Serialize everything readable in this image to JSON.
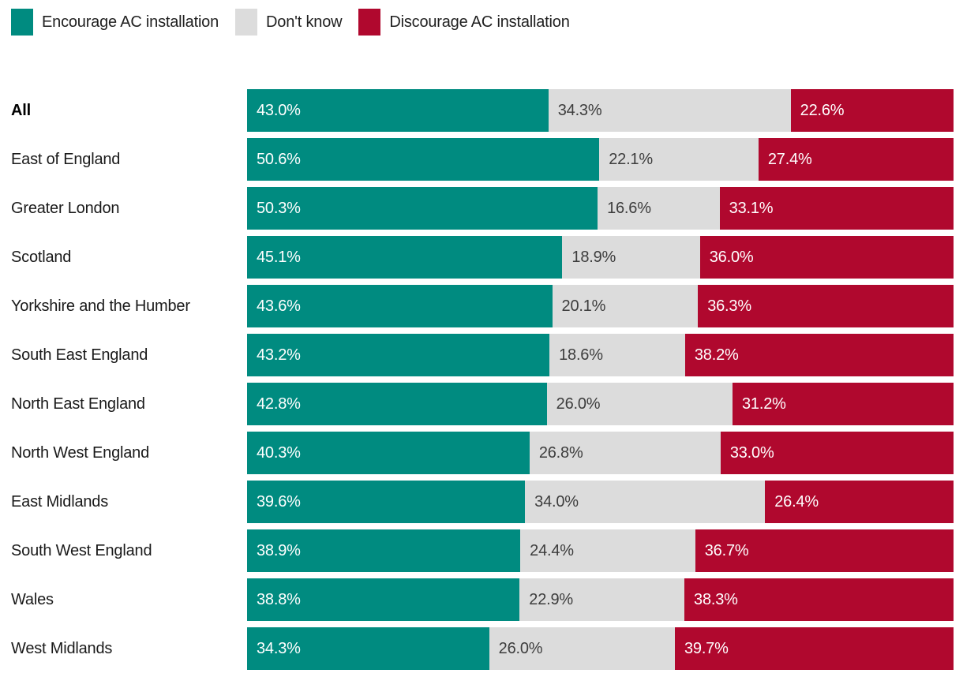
{
  "legend": {
    "items": [
      {
        "label": "Encourage AC installation",
        "color": "#008B80"
      },
      {
        "label": "Don't know",
        "color": "#DCDCDC"
      },
      {
        "label": "Discourage AC installation",
        "color": "#B0082E"
      }
    ]
  },
  "colors": {
    "encourage": "#008B80",
    "dont_know": "#DCDCDC",
    "discourage": "#B0082E",
    "value_text_on_dark": "#FFFFFF",
    "value_text_on_light": "#3D3D3D",
    "category_label_text": "#1A1A1A",
    "background": "#FFFFFF"
  },
  "chart_data": {
    "type": "bar",
    "orientation": "horizontal",
    "stacked": true,
    "unit": "%",
    "title": "",
    "xlabel": "",
    "ylabel": "",
    "xlim": [
      0,
      100
    ],
    "grid": false,
    "legend_position": "top-left",
    "value_label_format": "one_decimal_percent",
    "categories": [
      "All",
      "East of England",
      "Greater London",
      "Scotland",
      "Yorkshire and the Humber",
      "South East England",
      "North East England",
      "North West England",
      "East Midlands",
      "South West England",
      "Wales",
      "West Midlands"
    ],
    "bold_categories": [
      "All"
    ],
    "series": [
      {
        "name": "Encourage AC installation",
        "color": "#008B80",
        "value_color": "#FFFFFF",
        "values": [
          43.0,
          50.6,
          50.3,
          45.1,
          43.6,
          43.2,
          42.8,
          40.3,
          39.6,
          38.9,
          38.8,
          34.3
        ]
      },
      {
        "name": "Don't know",
        "color": "#DCDCDC",
        "value_color": "#3D3D3D",
        "values": [
          34.3,
          22.1,
          16.6,
          18.9,
          20.1,
          18.6,
          26.0,
          26.8,
          34.0,
          24.4,
          22.9,
          26.0
        ]
      },
      {
        "name": "Discourage AC installation",
        "color": "#B0082E",
        "value_color": "#FFFFFF",
        "values": [
          22.6,
          27.4,
          33.1,
          36.0,
          36.3,
          38.2,
          31.2,
          33.0,
          26.4,
          36.7,
          38.3,
          39.7
        ]
      }
    ]
  }
}
